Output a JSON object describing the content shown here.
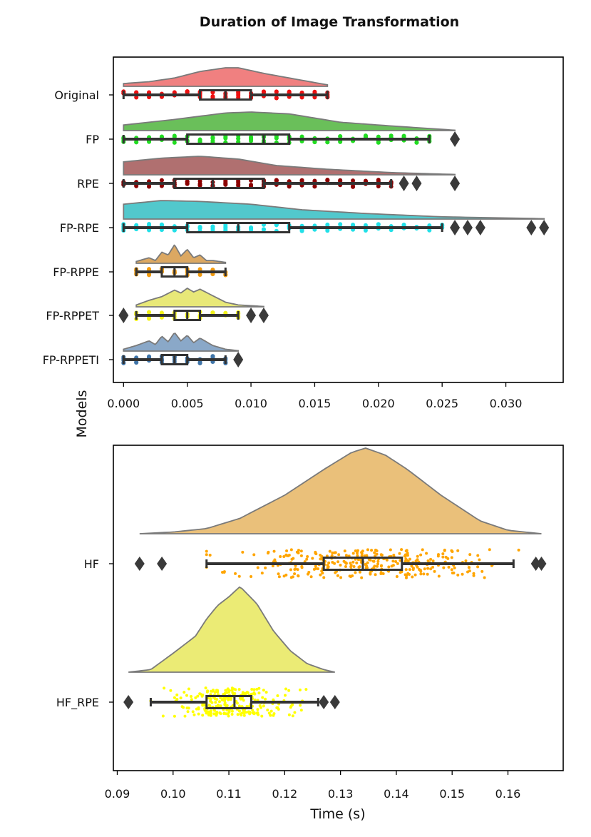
{
  "figure": {
    "title": "Duration of Image Transformation",
    "shared_ylabel": "Models",
    "shared_xlabel": "Time (s)"
  },
  "colors": {
    "Original": "#ee1111",
    "FP": "#22dd22",
    "RPE": "#8b0000",
    "FP-RPE": "#22e0e8",
    "FP-RPPE": "#f29b0f",
    "FP-RPPET": "#f2f21a",
    "FP-RPPETI": "#3f74a8",
    "HF": "#ffa500",
    "HF_RPE": "#ffff00",
    "violin_Original": "#f08080",
    "violin_FP": "#6abf5a",
    "violin_RPE": "#b07070",
    "violin_FP-RPE": "#52c8cc",
    "violin_FP-RPPE": "#dca862",
    "violin_FP-RPPET": "#e8e878",
    "violin_FP-RPPETI": "#8aa8c8",
    "violin_HF": "#eac07a",
    "violin_HF_RPE": "#ebeb75"
  },
  "chart_data": [
    {
      "type": "raincloud",
      "orientation": "horizontal",
      "title": "Duration of Image Transformation",
      "xlabel": "",
      "ylabel": "Models",
      "xlim": [
        -0.0008,
        0.0345
      ],
      "xticks": [
        0.0,
        0.005,
        0.01,
        0.015,
        0.02,
        0.025,
        0.03
      ],
      "xtick_labels": [
        "0.000",
        "0.005",
        "0.010",
        "0.015",
        "0.020",
        "0.025",
        "0.030"
      ],
      "categories": [
        "Original",
        "FP",
        "RPE",
        "FP-RPE",
        "FP-RPPE",
        "FP-RPPET",
        "FP-RPPETI"
      ],
      "series": [
        {
          "name": "Original",
          "whisker_low": 0.0,
          "q1": 0.006,
          "median": 0.008,
          "q3": 0.01,
          "whisker_high": 0.016,
          "outliers": [],
          "points": [
            0.0,
            0.001,
            0.002,
            0.003,
            0.004,
            0.005,
            0.006,
            0.007,
            0.008,
            0.009,
            0.01,
            0.011,
            0.012,
            0.013,
            0.014,
            0.015,
            0.016
          ],
          "density": [
            [
              0.0,
              0.15
            ],
            [
              0.002,
              0.25
            ],
            [
              0.004,
              0.45
            ],
            [
              0.006,
              0.8
            ],
            [
              0.008,
              1.0
            ],
            [
              0.009,
              1.0
            ],
            [
              0.011,
              0.7
            ],
            [
              0.013,
              0.45
            ],
            [
              0.016,
              0.08
            ]
          ]
        },
        {
          "name": "FP",
          "whisker_low": 0.0,
          "q1": 0.005,
          "median": 0.011,
          "q3": 0.013,
          "whisker_high": 0.024,
          "outliers": [
            0.026
          ],
          "points": [
            0.0,
            0.001,
            0.002,
            0.003,
            0.004,
            0.005,
            0.006,
            0.007,
            0.008,
            0.009,
            0.01,
            0.011,
            0.012,
            0.013,
            0.014,
            0.015,
            0.016,
            0.017,
            0.018,
            0.019,
            0.02,
            0.021,
            0.022,
            0.023,
            0.024
          ],
          "density": [
            [
              0.0,
              0.3
            ],
            [
              0.004,
              0.6
            ],
            [
              0.008,
              0.95
            ],
            [
              0.01,
              1.0
            ],
            [
              0.013,
              0.9
            ],
            [
              0.017,
              0.45
            ],
            [
              0.021,
              0.25
            ],
            [
              0.026,
              0.02
            ]
          ]
        },
        {
          "name": "RPE",
          "whisker_low": 0.0,
          "q1": 0.004,
          "median": 0.007,
          "q3": 0.011,
          "whisker_high": 0.021,
          "outliers": [
            0.022,
            0.023,
            0.026
          ],
          "points": [
            0.0,
            0.001,
            0.002,
            0.003,
            0.004,
            0.005,
            0.006,
            0.007,
            0.008,
            0.009,
            0.01,
            0.011,
            0.012,
            0.013,
            0.014,
            0.015,
            0.016,
            0.017,
            0.018,
            0.019,
            0.02,
            0.021
          ],
          "density": [
            [
              0.0,
              0.7
            ],
            [
              0.003,
              0.9
            ],
            [
              0.006,
              1.0
            ],
            [
              0.009,
              0.85
            ],
            [
              0.012,
              0.5
            ],
            [
              0.016,
              0.3
            ],
            [
              0.021,
              0.12
            ],
            [
              0.026,
              0.02
            ]
          ]
        },
        {
          "name": "FP-RPE",
          "whisker_low": 0.0,
          "q1": 0.005,
          "median": 0.009,
          "q3": 0.013,
          "whisker_high": 0.025,
          "outliers": [
            0.026,
            0.027,
            0.028,
            0.032,
            0.033
          ],
          "points": [
            0.0,
            0.001,
            0.002,
            0.003,
            0.004,
            0.005,
            0.006,
            0.007,
            0.008,
            0.009,
            0.01,
            0.011,
            0.012,
            0.013,
            0.014,
            0.015,
            0.016,
            0.017,
            0.018,
            0.019,
            0.02,
            0.021,
            0.022,
            0.023,
            0.024,
            0.025
          ],
          "density": [
            [
              0.0,
              0.8
            ],
            [
              0.003,
              1.0
            ],
            [
              0.006,
              0.95
            ],
            [
              0.01,
              0.8
            ],
            [
              0.014,
              0.5
            ],
            [
              0.019,
              0.3
            ],
            [
              0.025,
              0.12
            ],
            [
              0.033,
              0.02
            ]
          ]
        },
        {
          "name": "FP-RPPE",
          "whisker_low": 0.001,
          "q1": 0.003,
          "median": 0.004,
          "q3": 0.005,
          "whisker_high": 0.008,
          "outliers": [],
          "points": [
            0.001,
            0.002,
            0.003,
            0.004,
            0.005,
            0.006,
            0.007,
            0.008
          ],
          "density": [
            [
              0.001,
              0.1
            ],
            [
              0.002,
              0.3
            ],
            [
              0.0025,
              0.15
            ],
            [
              0.003,
              0.6
            ],
            [
              0.0035,
              0.45
            ],
            [
              0.004,
              1.0
            ],
            [
              0.0045,
              0.4
            ],
            [
              0.005,
              0.75
            ],
            [
              0.0055,
              0.3
            ],
            [
              0.006,
              0.45
            ],
            [
              0.0065,
              0.15
            ],
            [
              0.007,
              0.15
            ],
            [
              0.008,
              0.05
            ]
          ]
        },
        {
          "name": "FP-RPPET",
          "whisker_low": 0.001,
          "q1": 0.004,
          "median": 0.005,
          "q3": 0.006,
          "whisker_high": 0.009,
          "outliers": [
            0.0,
            0.01,
            0.011
          ],
          "points": [
            0.001,
            0.002,
            0.003,
            0.004,
            0.005,
            0.006,
            0.007,
            0.008,
            0.009
          ],
          "density": [
            [
              0.001,
              0.1
            ],
            [
              0.002,
              0.35
            ],
            [
              0.003,
              0.55
            ],
            [
              0.004,
              0.9
            ],
            [
              0.0045,
              0.75
            ],
            [
              0.005,
              1.0
            ],
            [
              0.0055,
              0.8
            ],
            [
              0.006,
              0.95
            ],
            [
              0.007,
              0.6
            ],
            [
              0.008,
              0.25
            ],
            [
              0.009,
              0.1
            ],
            [
              0.011,
              0.02
            ]
          ]
        },
        {
          "name": "FP-RPPETI",
          "whisker_low": 0.0,
          "q1": 0.003,
          "median": 0.004,
          "q3": 0.005,
          "whisker_high": 0.008,
          "outliers": [
            0.009
          ],
          "points": [
            0.0,
            0.001,
            0.002,
            0.003,
            0.004,
            0.005,
            0.006,
            0.007,
            0.008
          ],
          "density": [
            [
              0.0,
              0.1
            ],
            [
              0.001,
              0.3
            ],
            [
              0.002,
              0.55
            ],
            [
              0.0025,
              0.35
            ],
            [
              0.003,
              0.8
            ],
            [
              0.0035,
              0.5
            ],
            [
              0.004,
              1.0
            ],
            [
              0.0045,
              0.55
            ],
            [
              0.005,
              0.85
            ],
            [
              0.0055,
              0.45
            ],
            [
              0.006,
              0.7
            ],
            [
              0.007,
              0.3
            ],
            [
              0.008,
              0.1
            ],
            [
              0.009,
              0.02
            ]
          ]
        }
      ]
    },
    {
      "type": "raincloud",
      "orientation": "horizontal",
      "title": "",
      "xlabel": "Time (s)",
      "ylabel": "Models",
      "xlim": [
        0.0893,
        0.1699
      ],
      "xticks": [
        0.09,
        0.1,
        0.11,
        0.12,
        0.13,
        0.14,
        0.15,
        0.16
      ],
      "xtick_labels": [
        "0.09",
        "0.10",
        "0.11",
        "0.12",
        "0.13",
        "0.14",
        "0.15",
        "0.16"
      ],
      "categories": [
        "HF",
        "HF_RPE"
      ],
      "series": [
        {
          "name": "HF",
          "whisker_low": 0.106,
          "q1": 0.127,
          "median": 0.134,
          "q3": 0.141,
          "whisker_high": 0.161,
          "outliers": [
            0.094,
            0.098,
            0.165,
            0.166
          ],
          "point_range": [
            0.106,
            0.166
          ],
          "point_center": 0.134,
          "point_spread": 0.011,
          "point_count": 320,
          "density": [
            [
              0.094,
              0.0
            ],
            [
              0.1,
              0.02
            ],
            [
              0.106,
              0.06
            ],
            [
              0.112,
              0.18
            ],
            [
              0.12,
              0.45
            ],
            [
              0.127,
              0.75
            ],
            [
              0.132,
              0.95
            ],
            [
              0.1345,
              1.0
            ],
            [
              0.138,
              0.92
            ],
            [
              0.142,
              0.75
            ],
            [
              0.148,
              0.45
            ],
            [
              0.155,
              0.15
            ],
            [
              0.16,
              0.04
            ],
            [
              0.166,
              0.0
            ]
          ]
        },
        {
          "name": "HF_RPE",
          "whisker_low": 0.096,
          "q1": 0.106,
          "median": 0.111,
          "q3": 0.114,
          "whisker_high": 0.126,
          "outliers": [
            0.092,
            0.127,
            0.129
          ],
          "point_range": [
            0.096,
            0.127
          ],
          "point_center": 0.111,
          "point_spread": 0.0055,
          "point_count": 260,
          "density": [
            [
              0.092,
              0.0
            ],
            [
              0.096,
              0.03
            ],
            [
              0.1,
              0.22
            ],
            [
              0.104,
              0.42
            ],
            [
              0.106,
              0.62
            ],
            [
              0.108,
              0.78
            ],
            [
              0.11,
              0.88
            ],
            [
              0.112,
              1.0
            ],
            [
              0.115,
              0.8
            ],
            [
              0.118,
              0.48
            ],
            [
              0.121,
              0.25
            ],
            [
              0.124,
              0.1
            ],
            [
              0.127,
              0.03
            ],
            [
              0.129,
              0.0
            ]
          ]
        }
      ]
    }
  ]
}
